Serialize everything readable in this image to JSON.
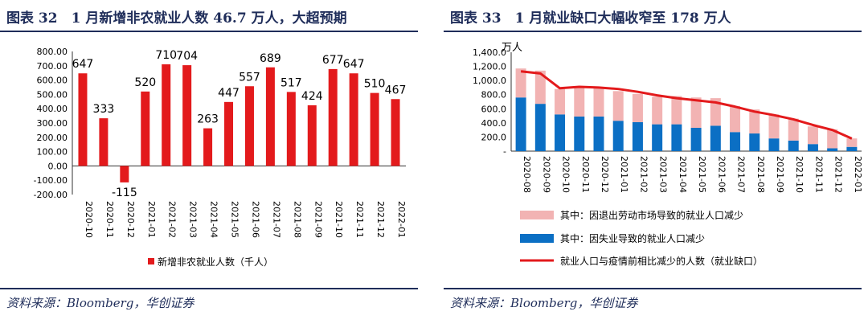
{
  "left": {
    "title": "图表 32　1 月新增非农就业人数 46.7 万人，大超预期",
    "source": "资料来源：Bloomberg，华创证券",
    "chart_data": {
      "type": "bar",
      "categories": [
        "2020-10",
        "2020-11",
        "2020-12",
        "2021-01",
        "2021-02",
        "2021-03",
        "2021-04",
        "2021-05",
        "2021-06",
        "2021-07",
        "2021-08",
        "2021-09",
        "2021-10",
        "2021-11",
        "2021-12",
        "2022-01"
      ],
      "series": [
        {
          "name": "新增非农就业人数（千人）",
          "values": [
            647,
            333,
            -115,
            520,
            710,
            704,
            263,
            447,
            557,
            689,
            517,
            424,
            677,
            647,
            510,
            467
          ],
          "color": "#e31a1c"
        }
      ],
      "ylim": [
        -200,
        800
      ],
      "yticks": [
        "800.00",
        "700.00",
        "600.00",
        "500.00",
        "400.00",
        "300.00",
        "200.00",
        "100.00",
        "0.00",
        "-100.00",
        "-200.00"
      ],
      "legend": "新增非农就业人数（千人）",
      "legend_position": "bottom"
    }
  },
  "right": {
    "title": "图表 33　1 月就业缺口大幅收窄至 178 万人",
    "source": "资料来源：Bloomberg，华创证券",
    "chart_data": {
      "type": "bar",
      "stacked": true,
      "unit": "万人",
      "categories": [
        "2020-08",
        "2020-09",
        "2020-10",
        "2020-11",
        "2020-12",
        "2021-01",
        "2021-02",
        "2021-03",
        "2021-04",
        "2021-05",
        "2021-06",
        "2021-07",
        "2021-08",
        "2021-09",
        "2021-10",
        "2021-11",
        "2021-12",
        "2022-01"
      ],
      "series": [
        {
          "name": "其中：因失业导致的就业人口减少",
          "kind": "bar",
          "color": "#0b6fc4",
          "values": [
            760,
            670,
            520,
            490,
            490,
            430,
            410,
            380,
            380,
            330,
            360,
            270,
            250,
            180,
            150,
            100,
            40,
            60
          ]
        },
        {
          "name": "其中：因退出劳动市场导致的就业人口减少",
          "kind": "bar",
          "color": "#f2b3b3",
          "values": [
            410,
            470,
            360,
            420,
            400,
            420,
            400,
            390,
            400,
            430,
            390,
            370,
            340,
            340,
            310,
            250,
            270,
            120
          ]
        },
        {
          "name": "就业人口与疫情前相比减少的人数（就业缺口）",
          "kind": "line",
          "color": "#e31a1c",
          "values": [
            1130,
            1100,
            890,
            910,
            900,
            880,
            840,
            790,
            750,
            720,
            690,
            630,
            560,
            510,
            450,
            370,
            300,
            178
          ]
        }
      ],
      "ylim": [
        0,
        1400
      ],
      "yticks": [
        "1,400.0",
        "1,200.0",
        "1,000.0",
        "800.0",
        "600.0",
        "400.0",
        "200.0",
        "-"
      ],
      "legend_position": "bottom"
    }
  }
}
